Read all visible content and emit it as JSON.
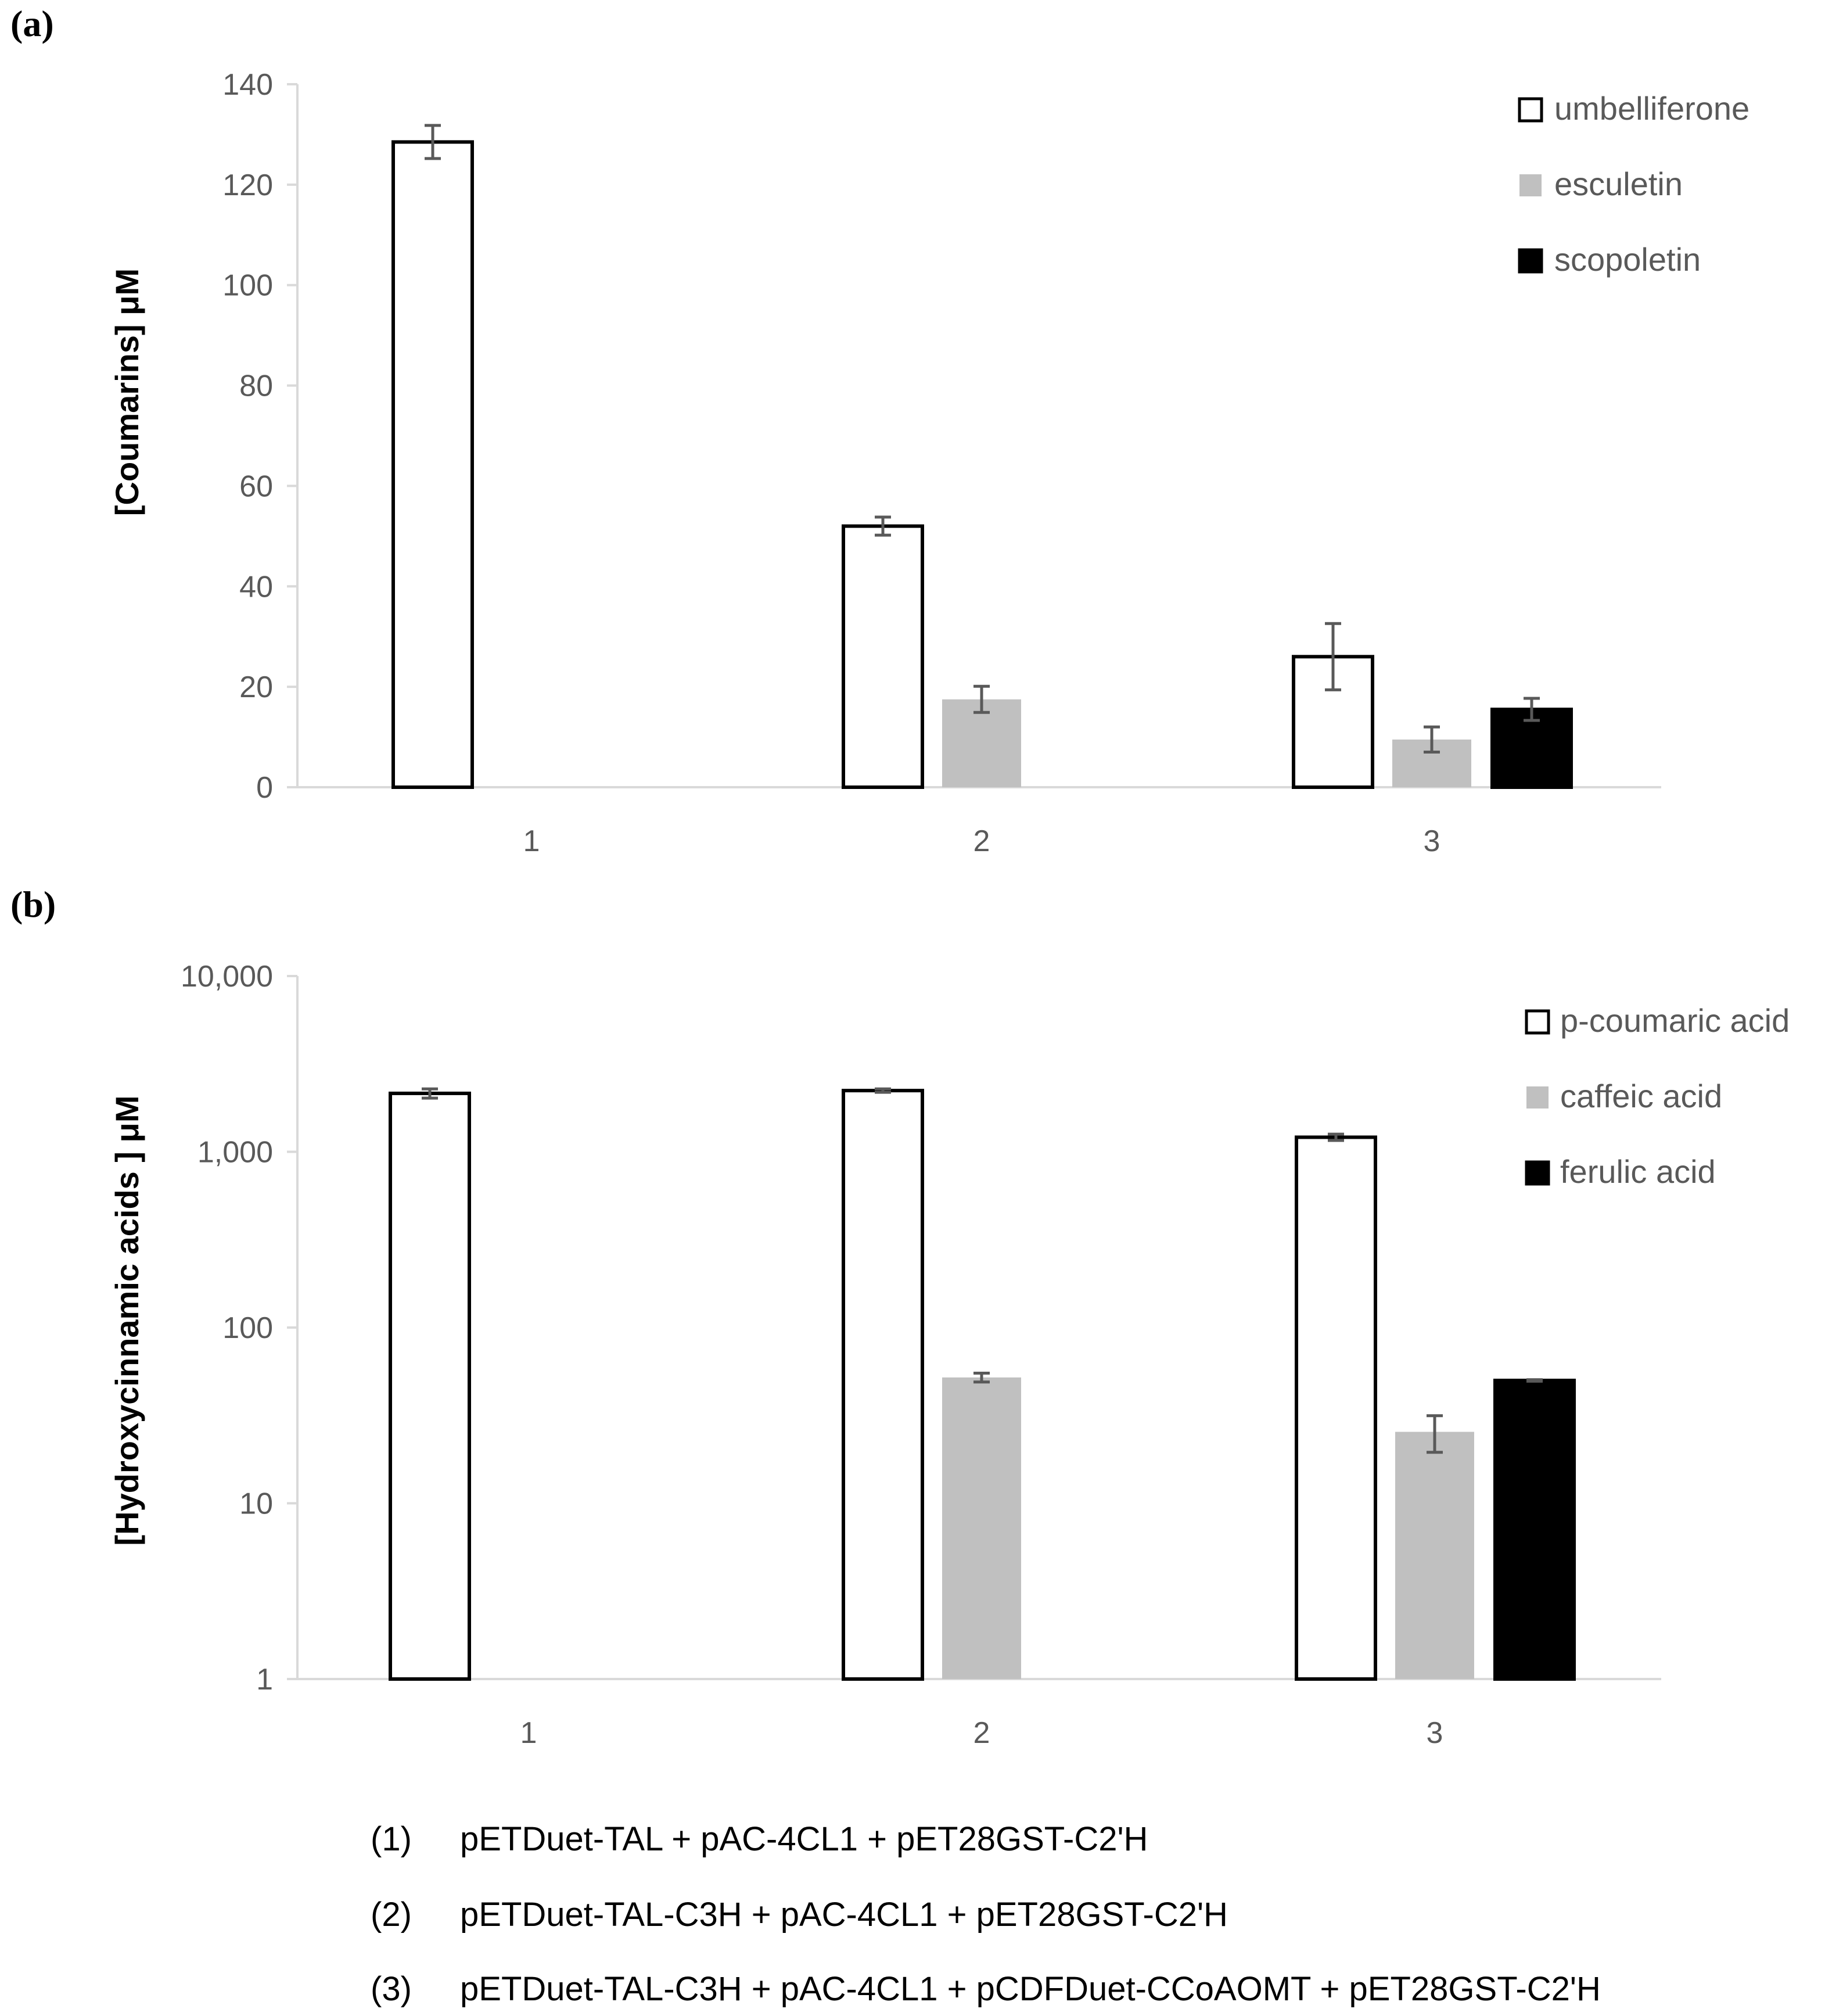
{
  "chart_data": [
    {
      "panel_label": "(a)",
      "type": "bar",
      "scale": "linear",
      "categories": [
        "1",
        "2",
        "3"
      ],
      "ylabel": "[Coumarins] μM",
      "ylim": [
        0,
        140
      ],
      "yticks": [
        "0",
        "20",
        "40",
        "60",
        "80",
        "100",
        "120",
        "140"
      ],
      "ytick_values": [
        0,
        20,
        40,
        60,
        80,
        100,
        120,
        140
      ],
      "grid": false,
      "legend_position": "top-right",
      "series": [
        {
          "name": "umbelliferone",
          "color": "#ffffff",
          "stroke": "#000000",
          "values": [
            128.5,
            52.0,
            26.0
          ],
          "errors": [
            3.3,
            1.8,
            6.6
          ]
        },
        {
          "name": "esculetin",
          "color": "#c0c0c0",
          "stroke": "none",
          "values": [
            null,
            17.5,
            9.5
          ],
          "errors": [
            null,
            2.6,
            2.5
          ]
        },
        {
          "name": "scopoletin",
          "color": "#000000",
          "stroke": "#000000",
          "values": [
            null,
            null,
            15.5
          ],
          "errors": [
            null,
            null,
            2.2
          ]
        }
      ]
    },
    {
      "panel_label": "(b)",
      "type": "bar",
      "scale": "log",
      "categories": [
        "1",
        "2",
        "3"
      ],
      "ylabel": "[Hydroxycinnamic acids ] μM",
      "ylim": [
        1,
        10000
      ],
      "yticks": [
        "1",
        "10",
        "100",
        "1,000",
        "10,000"
      ],
      "ytick_values": [
        1,
        10,
        100,
        1000,
        10000
      ],
      "grid": false,
      "legend_position": "top-right",
      "series": [
        {
          "name": "p-coumaric acid",
          "color": "#ffffff",
          "stroke": "#000000",
          "values": [
            2150,
            2230,
            1210
          ],
          "errors": [
            130,
            50,
            50
          ]
        },
        {
          "name": "caffeic acid",
          "color": "#c0c0c0",
          "stroke": "none",
          "values": [
            null,
            52,
            25.5
          ],
          "errors": [
            null,
            3,
            6
          ]
        },
        {
          "name": "ferulic acid",
          "color": "#000000",
          "stroke": "#000000",
          "values": [
            null,
            null,
            50
          ],
          "errors": [
            null,
            null,
            0.5
          ]
        }
      ]
    }
  ],
  "caption": [
    {
      "num": "(1)",
      "text": "pETDuet-TAL + pAC-4CL1 + pET28GST-C2'H"
    },
    {
      "num": "(2)",
      "text": "pETDuet-TAL-C3H + pAC-4CL1 + pET28GST-C2'H"
    },
    {
      "num": "(3)",
      "text": "pETDuet-TAL-C3H + pAC-4CL1 + pCDFDuet-CCoAOMT + pET28GST-C2'H"
    }
  ]
}
